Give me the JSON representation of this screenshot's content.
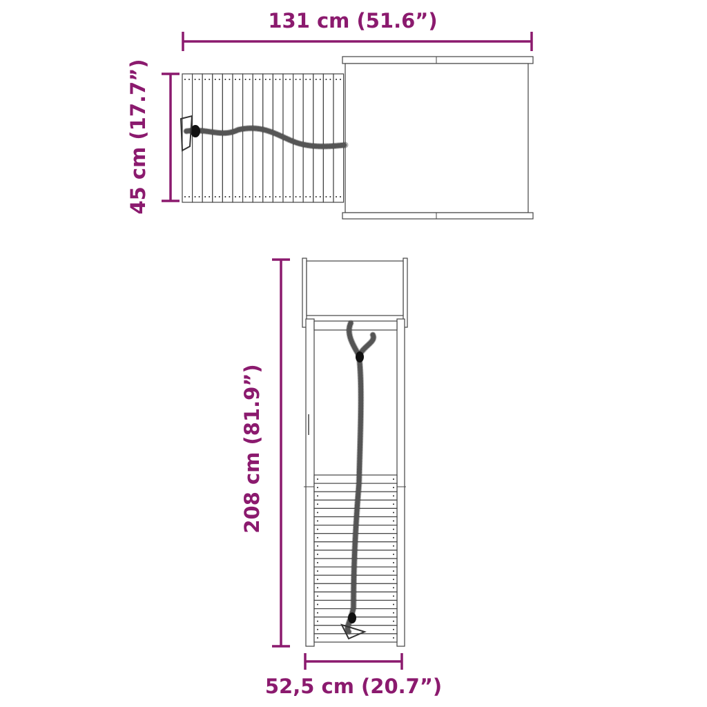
{
  "dimensions": {
    "length": "131 cm (51.6”)",
    "width": "45 cm (17.7”)",
    "height": "208 cm (81.9”)",
    "depth": "52,5 cm (20.7”)"
  },
  "colors": {
    "dimension": "#8B1A6E",
    "drawing": "#444444"
  }
}
